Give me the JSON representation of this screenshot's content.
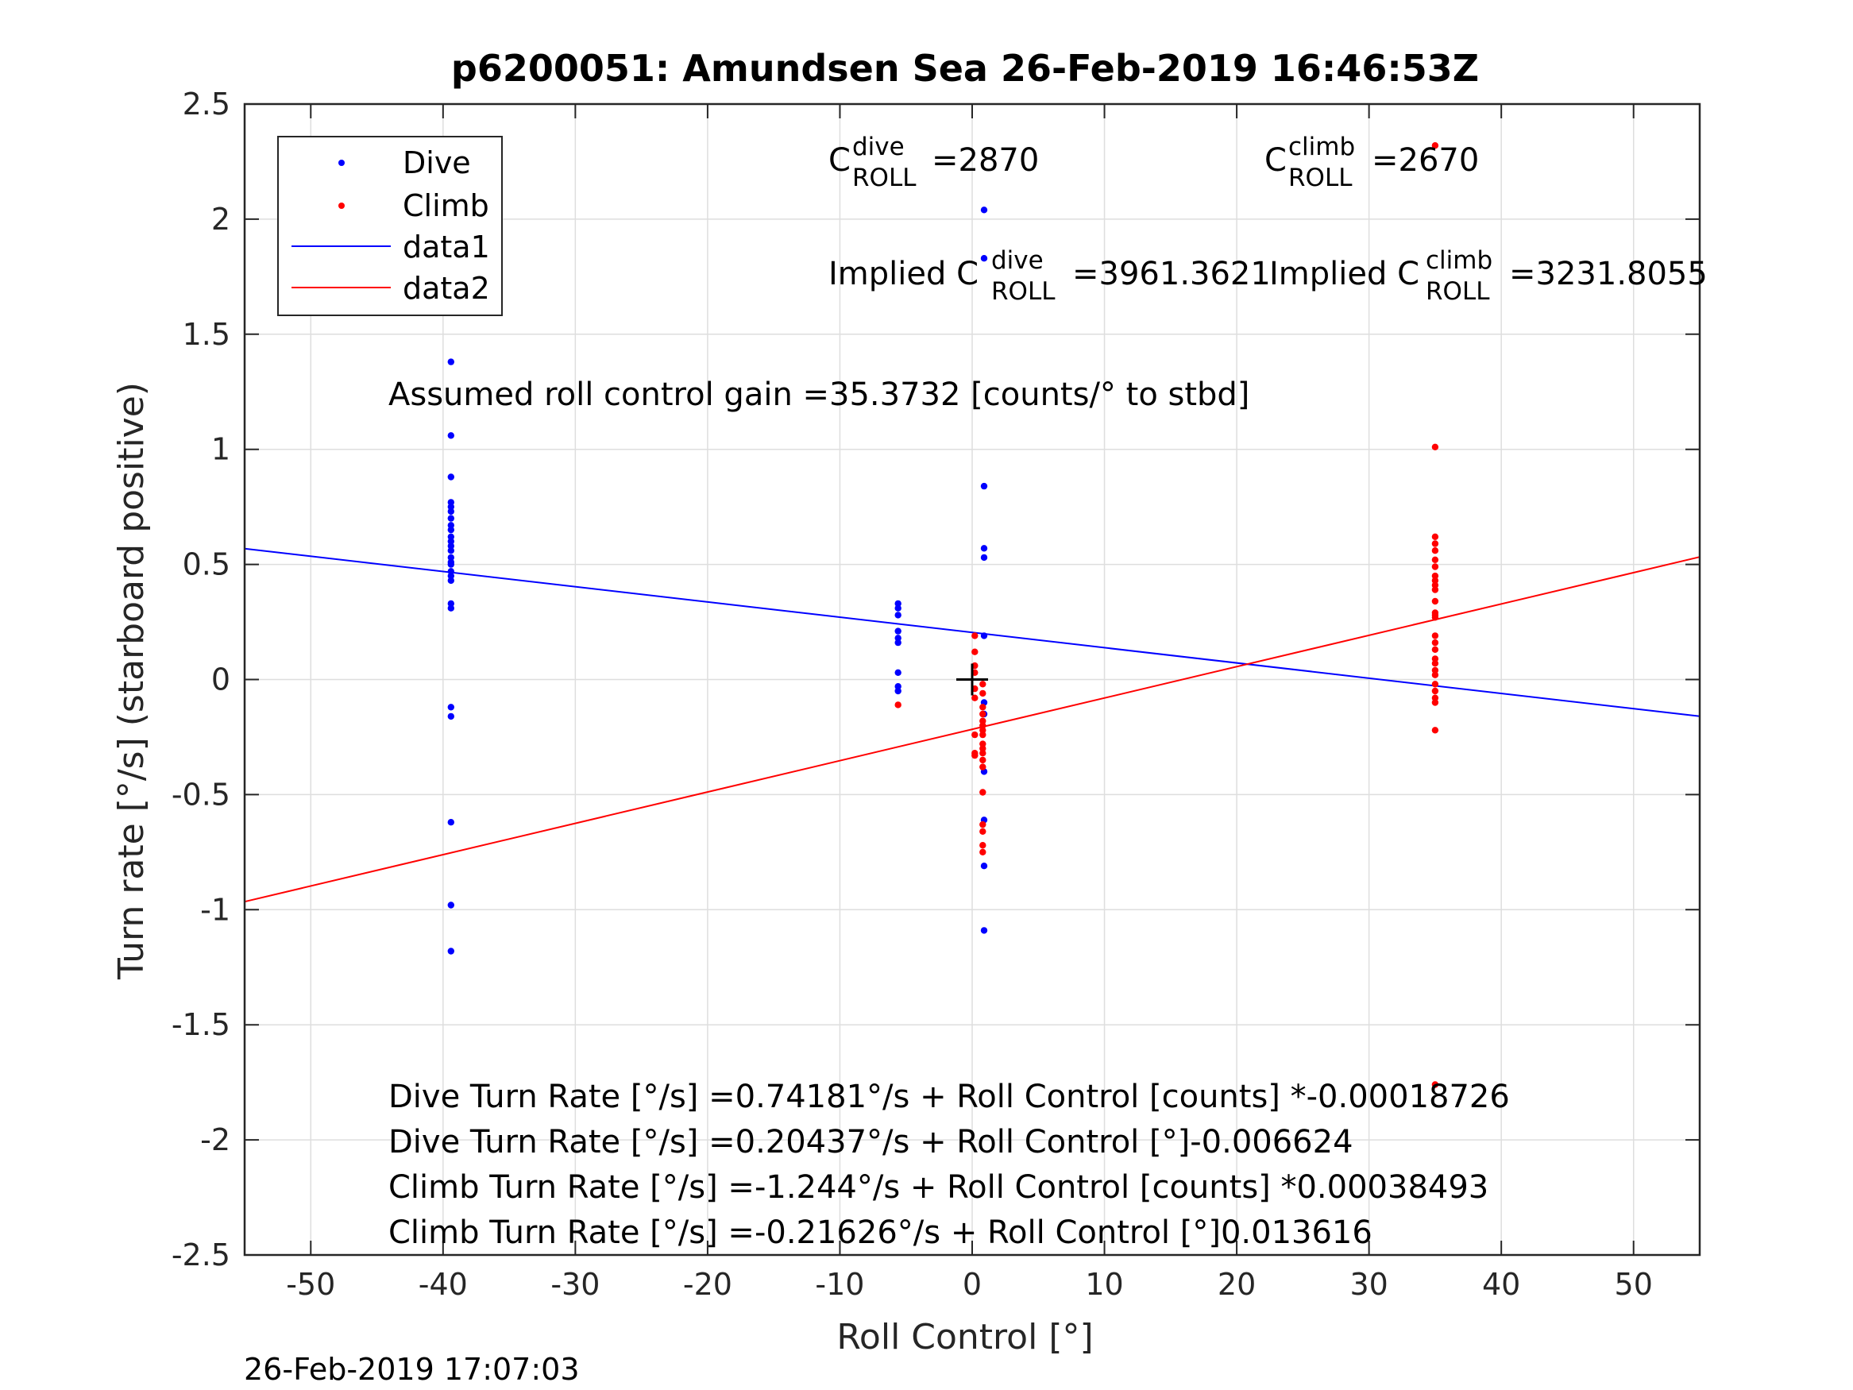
{
  "chart_data": {
    "type": "scatter",
    "title": "p6200051: Amundsen Sea 26-Feb-2019 16:46:53Z",
    "xlabel": "Roll Control [°]",
    "ylabel": "Turn rate [°/s] (starboard positive)",
    "xlim": [
      -55,
      55
    ],
    "ylim": [
      -2.5,
      2.5
    ],
    "xticks": [
      -50,
      -40,
      -30,
      -20,
      -10,
      0,
      10,
      20,
      30,
      40,
      50
    ],
    "xtick_labels": [
      "-50",
      "-40",
      "-30",
      "-20",
      "-10",
      "0",
      "10",
      "20",
      "30",
      "40",
      "50"
    ],
    "yticks": [
      -2.5,
      -2,
      -1.5,
      -1,
      -0.5,
      0,
      0.5,
      1,
      1.5,
      2,
      2.5
    ],
    "ytick_labels": [
      "-2.5",
      "-2",
      "-1.5",
      "-1",
      "-0.5",
      "0",
      "0.5",
      "1",
      "1.5",
      "2",
      "2.5"
    ],
    "grid": true,
    "legend_placement": "top-left",
    "legend": [
      {
        "label": "Dive",
        "style": "points",
        "color": "#0000ff"
      },
      {
        "label": "Climb",
        "style": "points",
        "color": "#ff0000"
      },
      {
        "label": "data1",
        "style": "line",
        "color": "#0000ff"
      },
      {
        "label": "data2",
        "style": "line",
        "color": "#ff0000"
      }
    ],
    "series": [
      {
        "name": "Dive",
        "color": "#0000ff",
        "type": "scatter",
        "points": [
          [
            -39.4,
            1.38
          ],
          [
            -39.4,
            1.06
          ],
          [
            -39.4,
            0.88
          ],
          [
            -39.4,
            0.77
          ],
          [
            -39.4,
            0.75
          ],
          [
            -39.4,
            0.73
          ],
          [
            -39.4,
            0.7
          ],
          [
            -39.4,
            0.67
          ],
          [
            -39.4,
            0.65
          ],
          [
            -39.4,
            0.62
          ],
          [
            -39.4,
            0.6
          ],
          [
            -39.4,
            0.58
          ],
          [
            -39.4,
            0.56
          ],
          [
            -39.4,
            0.53
          ],
          [
            -39.4,
            0.51
          ],
          [
            -39.4,
            0.5
          ],
          [
            -39.4,
            0.47
          ],
          [
            -39.4,
            0.45
          ],
          [
            -39.4,
            0.43
          ],
          [
            -39.4,
            0.33
          ],
          [
            -39.4,
            0.31
          ],
          [
            -39.4,
            -0.12
          ],
          [
            -39.4,
            -0.16
          ],
          [
            -39.4,
            -0.62
          ],
          [
            -39.4,
            -0.98
          ],
          [
            -39.4,
            -1.18
          ],
          [
            -5.6,
            0.33
          ],
          [
            -5.6,
            0.31
          ],
          [
            -5.6,
            0.28
          ],
          [
            -5.6,
            0.21
          ],
          [
            -5.6,
            0.18
          ],
          [
            -5.6,
            0.16
          ],
          [
            -5.6,
            0.03
          ],
          [
            -5.6,
            -0.03
          ],
          [
            -5.6,
            -0.05
          ],
          [
            0.9,
            2.04
          ],
          [
            0.9,
            1.83
          ],
          [
            0.9,
            0.84
          ],
          [
            0.9,
            0.57
          ],
          [
            0.9,
            0.53
          ],
          [
            0.9,
            0.19
          ],
          [
            0.9,
            -0.1
          ],
          [
            0.9,
            -0.15
          ],
          [
            0.9,
            -0.4
          ],
          [
            0.9,
            -0.61
          ],
          [
            0.9,
            -0.81
          ],
          [
            0.9,
            -1.09
          ]
        ]
      },
      {
        "name": "Climb",
        "color": "#ff0000",
        "type": "scatter",
        "points": [
          [
            -5.6,
            -0.11
          ],
          [
            0.2,
            0.19
          ],
          [
            0.2,
            0.12
          ],
          [
            0.2,
            0.06
          ],
          [
            0.2,
            0.03
          ],
          [
            0.2,
            -0.04
          ],
          [
            0.2,
            -0.08
          ],
          [
            0.2,
            -0.24
          ],
          [
            0.2,
            -0.32
          ],
          [
            0.2,
            -0.33
          ],
          [
            0.8,
            -0.02
          ],
          [
            0.8,
            -0.06
          ],
          [
            0.8,
            -0.12
          ],
          [
            0.8,
            -0.15
          ],
          [
            0.8,
            -0.18
          ],
          [
            0.8,
            -0.2
          ],
          [
            0.8,
            -0.22
          ],
          [
            0.8,
            -0.24
          ],
          [
            0.8,
            -0.28
          ],
          [
            0.8,
            -0.3
          ],
          [
            0.8,
            -0.32
          ],
          [
            0.8,
            -0.35
          ],
          [
            0.8,
            -0.38
          ],
          [
            0.8,
            -0.49
          ],
          [
            0.8,
            -0.63
          ],
          [
            0.8,
            -0.66
          ],
          [
            0.8,
            -0.72
          ],
          [
            0.8,
            -0.75
          ],
          [
            35,
            2.32
          ],
          [
            35,
            1.01
          ],
          [
            35,
            0.62
          ],
          [
            35,
            0.59
          ],
          [
            35,
            0.56
          ],
          [
            35,
            0.52
          ],
          [
            35,
            0.49
          ],
          [
            35,
            0.45
          ],
          [
            35,
            0.43
          ],
          [
            35,
            0.41
          ],
          [
            35,
            0.39
          ],
          [
            35,
            0.34
          ],
          [
            35,
            0.29
          ],
          [
            35,
            0.28
          ],
          [
            35,
            0.27
          ],
          [
            35,
            0.19
          ],
          [
            35,
            0.16
          ],
          [
            35,
            0.13
          ],
          [
            35,
            0.09
          ],
          [
            35,
            0.07
          ],
          [
            35,
            0.04
          ],
          [
            35,
            0.02
          ],
          [
            35,
            -0.02
          ],
          [
            35,
            -0.05
          ],
          [
            35,
            -0.08
          ],
          [
            35,
            -0.1
          ],
          [
            35,
            -0.22
          ],
          [
            35,
            -1.76
          ]
        ]
      },
      {
        "name": "data1",
        "color": "#0000ff",
        "type": "line",
        "x": [
          -55,
          55
        ],
        "y": [
          0.5687,
          -0.1599
        ]
      },
      {
        "name": "data2",
        "color": "#ff0000",
        "type": "line",
        "x": [
          -55,
          55
        ],
        "y": [
          -0.9651,
          0.5326
        ]
      }
    ],
    "marker": {
      "type": "plus",
      "x": 0,
      "y": 0,
      "color": "#000000"
    },
    "annotations": {
      "c_roll_dive": {
        "main": "C",
        "sup": "dive",
        "sub": "ROLL",
        "value": "=2870"
      },
      "c_roll_climb": {
        "main": "C",
        "sup": "climb",
        "sub": "ROLL",
        "value": "=2670"
      },
      "implied_dive": {
        "main": "Implied C",
        "sup": "dive",
        "sub": "ROLL",
        "value": "=3961.3621"
      },
      "implied_climb": {
        "main": "Implied C",
        "sup": "climb",
        "sub": "ROLL",
        "value": "=3231.8055"
      },
      "gain": "Assumed roll control gain =35.3732 [counts/° to stbd]",
      "eq1": "Dive Turn Rate [°/s] =0.74181°/s + Roll Control [counts] *-0.00018726",
      "eq2": "Dive Turn Rate [°/s] =0.20437°/s + Roll Control [°]-0.006624",
      "eq3": "Climb Turn Rate [°/s] =-1.244°/s + Roll Control [counts] *0.00038493",
      "eq4": "Climb Turn Rate [°/s] =-0.21626°/s + Roll Control [°]0.013616"
    },
    "timestamp": "26-Feb-2019 17:07:03"
  }
}
